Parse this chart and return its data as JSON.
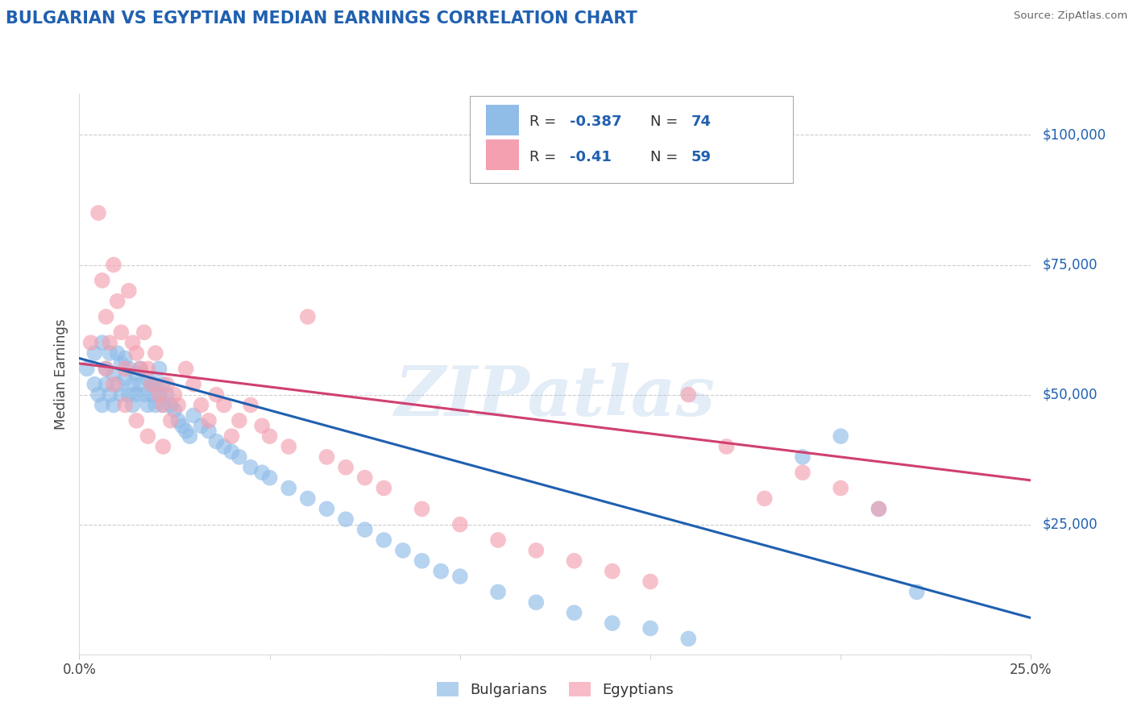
{
  "title": "BULGARIAN VS EGYPTIAN MEDIAN EARNINGS CORRELATION CHART",
  "source_text": "Source: ZipAtlas.com",
  "ylabel": "Median Earnings",
  "xlim": [
    0.0,
    0.25
  ],
  "ylim": [
    0,
    108000
  ],
  "yticks": [
    0,
    25000,
    50000,
    75000,
    100000
  ],
  "ytick_labels": [
    "",
    "$25,000",
    "$50,000",
    "$75,000",
    "$100,000"
  ],
  "bg_color": "#ffffff",
  "grid_color": "#c8c8c8",
  "blue_color": "#90bce8",
  "pink_color": "#f4a0b0",
  "blue_line_color": "#2060b0",
  "pink_line_color": "#d04070",
  "r_blue": -0.387,
  "n_blue": 74,
  "r_pink": -0.41,
  "n_pink": 59,
  "watermark": "ZIPatlas",
  "legend_blue_label": "Bulgarians",
  "legend_pink_label": "Egyptians",
  "blue_intercept": 57000,
  "blue_slope": -200000,
  "pink_intercept": 56000,
  "pink_slope": -90000,
  "blue_scatter_x": [
    0.002,
    0.004,
    0.004,
    0.005,
    0.006,
    0.006,
    0.007,
    0.007,
    0.008,
    0.008,
    0.009,
    0.009,
    0.01,
    0.01,
    0.011,
    0.011,
    0.012,
    0.012,
    0.013,
    0.013,
    0.014,
    0.014,
    0.015,
    0.015,
    0.016,
    0.016,
    0.017,
    0.018,
    0.018,
    0.019,
    0.019,
    0.02,
    0.02,
    0.021,
    0.021,
    0.022,
    0.022,
    0.023,
    0.024,
    0.025,
    0.026,
    0.027,
    0.028,
    0.029,
    0.03,
    0.032,
    0.034,
    0.036,
    0.038,
    0.04,
    0.042,
    0.045,
    0.048,
    0.05,
    0.055,
    0.06,
    0.065,
    0.07,
    0.075,
    0.08,
    0.085,
    0.09,
    0.095,
    0.1,
    0.11,
    0.12,
    0.13,
    0.14,
    0.15,
    0.16,
    0.19,
    0.2,
    0.21,
    0.22
  ],
  "blue_scatter_y": [
    55000,
    58000,
    52000,
    50000,
    60000,
    48000,
    55000,
    52000,
    58000,
    50000,
    54000,
    48000,
    52000,
    58000,
    56000,
    50000,
    53000,
    57000,
    55000,
    50000,
    52000,
    48000,
    54000,
    50000,
    52000,
    55000,
    50000,
    53000,
    48000,
    52000,
    50000,
    52000,
    48000,
    50000,
    55000,
    52000,
    48000,
    50000,
    48000,
    47000,
    45000,
    44000,
    43000,
    42000,
    46000,
    44000,
    43000,
    41000,
    40000,
    39000,
    38000,
    36000,
    35000,
    34000,
    32000,
    30000,
    28000,
    26000,
    24000,
    22000,
    20000,
    18000,
    16000,
    15000,
    12000,
    10000,
    8000,
    6000,
    5000,
    3000,
    38000,
    42000,
    28000,
    12000
  ],
  "pink_scatter_x": [
    0.003,
    0.005,
    0.006,
    0.007,
    0.008,
    0.009,
    0.01,
    0.011,
    0.012,
    0.013,
    0.014,
    0.015,
    0.016,
    0.017,
    0.018,
    0.019,
    0.02,
    0.021,
    0.022,
    0.023,
    0.024,
    0.025,
    0.026,
    0.028,
    0.03,
    0.032,
    0.034,
    0.036,
    0.038,
    0.04,
    0.042,
    0.045,
    0.048,
    0.05,
    0.055,
    0.06,
    0.065,
    0.07,
    0.075,
    0.08,
    0.09,
    0.1,
    0.11,
    0.12,
    0.13,
    0.14,
    0.15,
    0.16,
    0.17,
    0.18,
    0.19,
    0.2,
    0.21,
    0.007,
    0.009,
    0.012,
    0.015,
    0.018,
    0.022
  ],
  "pink_scatter_y": [
    60000,
    85000,
    72000,
    65000,
    60000,
    75000,
    68000,
    62000,
    55000,
    70000,
    60000,
    58000,
    55000,
    62000,
    55000,
    52000,
    58000,
    50000,
    48000,
    52000,
    45000,
    50000,
    48000,
    55000,
    52000,
    48000,
    45000,
    50000,
    48000,
    42000,
    45000,
    48000,
    44000,
    42000,
    40000,
    65000,
    38000,
    36000,
    34000,
    32000,
    28000,
    25000,
    22000,
    20000,
    18000,
    16000,
    14000,
    50000,
    40000,
    30000,
    35000,
    32000,
    28000,
    55000,
    52000,
    48000,
    45000,
    42000,
    40000
  ]
}
